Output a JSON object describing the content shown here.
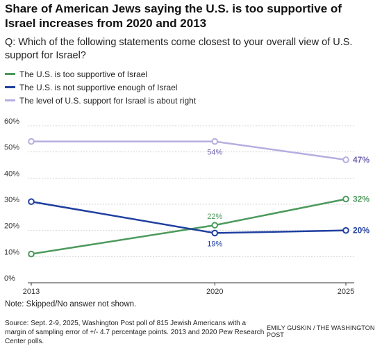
{
  "title": "Share of American Jews saying the U.S. is too supportive of Israel increases from 2020 and 2013",
  "question": "Q: Which of the following statements come closest to your overall view of U.S. support for Israel?",
  "note": "Note: Skipped/No answer not shown.",
  "source": "Source: Sept. 2-9, 2025, Washington Post poll of 815 Jewish Americans with a margin of sampling error of +/- 4.7 percentage points. 2013 and 2020 Pew Research Center polls.",
  "credit": "EMILY GUSKIN / THE WASHINGTON POST",
  "chart_data": {
    "type": "line",
    "x": [
      2013,
      2020,
      2025
    ],
    "x_tick_labels": [
      "2013",
      "2020",
      "2025"
    ],
    "ylim": [
      0,
      60
    ],
    "y_ticks": [
      0,
      10,
      20,
      30,
      40,
      50,
      60
    ],
    "y_tick_labels": [
      "0%",
      "10%",
      "20%",
      "30%",
      "40%",
      "50%",
      "60%"
    ],
    "grid": true,
    "legend_position": "top-left",
    "series": [
      {
        "name": "The U.S. is too supportive of Israel",
        "color": "#4c9a5c",
        "values": [
          11,
          22,
          32
        ],
        "labels": [
          "",
          "22%",
          "32%"
        ]
      },
      {
        "name": "The U.S. is not supportive enough of Israel",
        "color": "#1f3fa0",
        "values": [
          31,
          19,
          20
        ],
        "labels": [
          "",
          "19%",
          "20%"
        ]
      },
      {
        "name": "The level of U.S. support for Israel is about right",
        "color": "#b6aee0",
        "label_color": "#6f63b0",
        "values": [
          54,
          54,
          47
        ],
        "labels": [
          "",
          "54%",
          "47%"
        ]
      }
    ]
  }
}
